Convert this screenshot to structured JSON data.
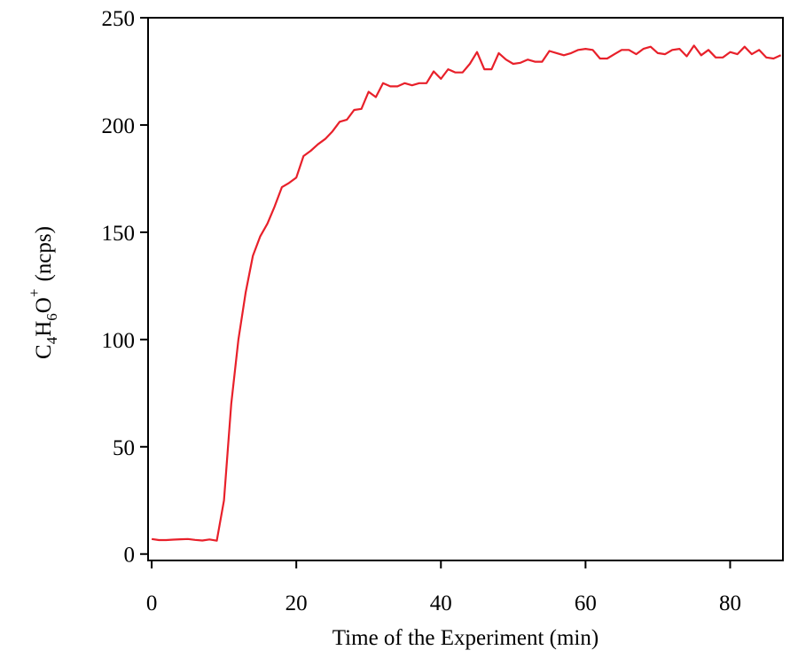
{
  "chart_data": {
    "type": "line",
    "title": "",
    "xlabel": "Time of the Experiment (min)",
    "ylabel": {
      "base": "C",
      "sub1": "4",
      "mid": "H",
      "sub2": "6",
      "end": "O",
      "sup": "+",
      "units": "(ncps)"
    },
    "xlim": [
      -0.5,
      87.3
    ],
    "ylim": [
      -3,
      250
    ],
    "xticks": [
      0,
      20,
      40,
      60,
      80
    ],
    "yticks": [
      0,
      50,
      100,
      150,
      200,
      250
    ],
    "grid": false,
    "legend": "none",
    "series": [
      {
        "name": "C4H6O+",
        "color": "#e8202a",
        "x": [
          0,
          1,
          2,
          3,
          4,
          5,
          6,
          7,
          8,
          9,
          10,
          11,
          12,
          13,
          14,
          15,
          16,
          17,
          18,
          19,
          20,
          21,
          22,
          23,
          24,
          25,
          26,
          27,
          28,
          29,
          30,
          31,
          32,
          33,
          34,
          35,
          36,
          37,
          38,
          39,
          40,
          41,
          42,
          43,
          44,
          45,
          46,
          47,
          48,
          49,
          50,
          51,
          52,
          53,
          54,
          55,
          56,
          57,
          58,
          59,
          60,
          61,
          62,
          63,
          64,
          65,
          66,
          67,
          68,
          69,
          70,
          71,
          72,
          73,
          74,
          75,
          76,
          77,
          78,
          79,
          80,
          81,
          82,
          83,
          84,
          85,
          86,
          87
        ],
        "y": [
          7,
          6.5,
          6.5,
          6.7,
          6.9,
          7,
          6.6,
          6.3,
          6.8,
          6.2,
          25,
          70,
          100,
          122,
          139,
          148,
          154,
          162,
          171,
          173,
          175.5,
          185.5,
          188,
          191,
          193.5,
          197,
          201.5,
          202.5,
          207,
          207.5,
          215.5,
          213,
          219.5,
          218,
          218,
          219.5,
          218.5,
          219.5,
          219.5,
          225,
          221.5,
          226,
          224.5,
          224.5,
          228.5,
          234,
          226,
          226,
          233.5,
          230.5,
          228.5,
          229,
          230.5,
          229.5,
          229.5,
          234.5,
          233.5,
          232.5,
          233.5,
          235,
          235.5,
          235,
          231,
          231,
          233,
          235,
          235,
          233,
          235.5,
          236.5,
          233.5,
          233,
          235,
          235.5,
          232,
          237,
          232.5,
          235,
          231.5,
          231.5,
          234,
          233,
          236.5,
          233,
          235,
          231.5,
          231,
          232.5
        ]
      }
    ]
  }
}
